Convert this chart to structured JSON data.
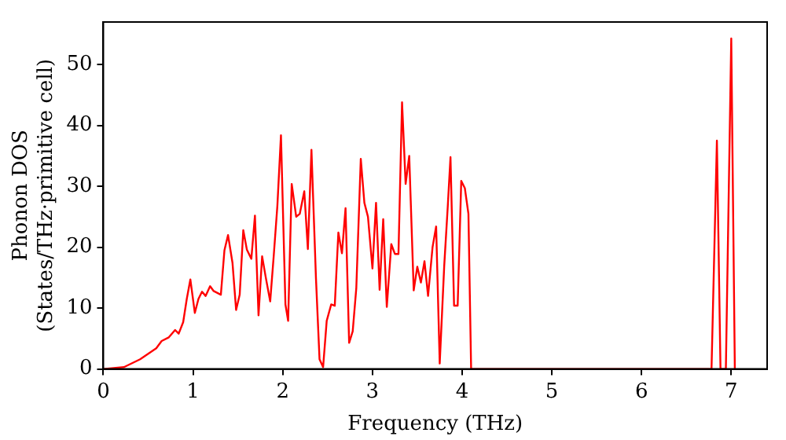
{
  "chart_data": {
    "type": "line",
    "xlabel": "Frequency (THz)",
    "ylabel": "Phonon DOS\n(States/THz·primitive cell)",
    "xlim": [
      0,
      7.4
    ],
    "xticks": [
      0,
      1,
      2,
      3,
      4,
      5,
      6,
      7
    ],
    "ylim": [
      0,
      57
    ],
    "yticks": [
      0,
      10,
      20,
      30,
      40,
      50
    ],
    "grid": false,
    "legend": false,
    "marker": "none",
    "line_style": "solid",
    "x": [
      0,
      0.23,
      0.41,
      0.59,
      0.65,
      0.73,
      0.8,
      0.84,
      0.89,
      0.93,
      0.97,
      1.02,
      1.06,
      1.1,
      1.14,
      1.19,
      1.23,
      1.31,
      1.35,
      1.39,
      1.44,
      1.48,
      1.52,
      1.56,
      1.6,
      1.65,
      1.69,
      1.73,
      1.77,
      1.81,
      1.86,
      1.9,
      1.94,
      1.98,
      2.03,
      2.06,
      2.1,
      2.15,
      2.19,
      2.24,
      2.28,
      2.32,
      2.37,
      2.41,
      2.45,
      2.49,
      2.54,
      2.58,
      2.62,
      2.66,
      2.7,
      2.74,
      2.78,
      2.82,
      2.87,
      2.91,
      2.95,
      3.0,
      3.04,
      3.08,
      3.12,
      3.16,
      3.21,
      3.25,
      3.29,
      3.33,
      3.37,
      3.41,
      3.46,
      3.5,
      3.54,
      3.58,
      3.62,
      3.67,
      3.71,
      3.75,
      3.8,
      3.84,
      3.87,
      3.91,
      3.95,
      3.99,
      4.03,
      4.07,
      4.1,
      6.78,
      6.84,
      6.88,
      6.94,
      7.0,
      7.04
    ],
    "series": [
      {
        "color": "#ff0000",
        "values": [
          0,
          0.3,
          1.6,
          3.4,
          4.6,
          5.2,
          6.4,
          5.8,
          7.7,
          11.5,
          14.7,
          9.2,
          11.5,
          12.7,
          12,
          13.6,
          12.8,
          12.2,
          19.5,
          22,
          17.4,
          9.7,
          12.2,
          22.8,
          19.6,
          18.1,
          25.2,
          8.8,
          18.5,
          15.1,
          11.1,
          18.7,
          26.8,
          38.4,
          10.6,
          7.9,
          30.4,
          25,
          25.5,
          29.2,
          19.7,
          36,
          15,
          1.6,
          0.3,
          7.9,
          10.6,
          10.4,
          22.4,
          19,
          26.4,
          4.3,
          6.2,
          13.3,
          34.5,
          27.3,
          25,
          16.5,
          27.3,
          13,
          24.6,
          10.2,
          20.5,
          18.9,
          18.9,
          43.8,
          30.4,
          35,
          12.9,
          16.8,
          14.2,
          17.7,
          12,
          20,
          23.4,
          0.9,
          16.9,
          26.8,
          34.8,
          10.4,
          10.4,
          30.9,
          29.7,
          25.5,
          0,
          0,
          37.5,
          0,
          0,
          54.3,
          0
        ]
      }
    ]
  }
}
